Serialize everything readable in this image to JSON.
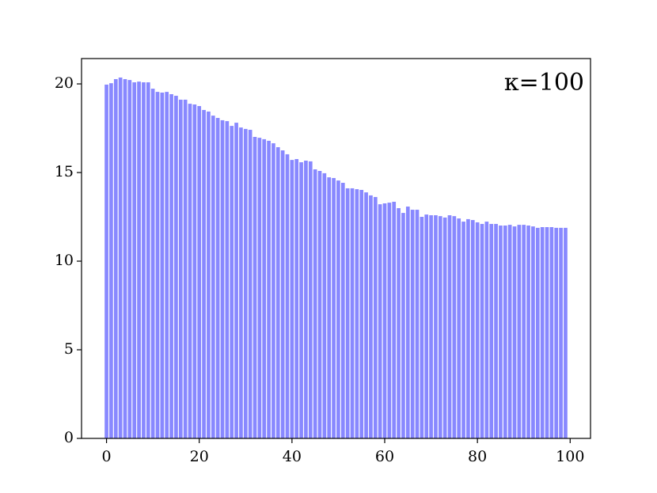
{
  "chart_data": {
    "type": "bar",
    "annotation": "κ=100",
    "x": [
      0,
      1,
      2,
      3,
      4,
      5,
      6,
      7,
      8,
      9,
      10,
      11,
      12,
      13,
      14,
      15,
      16,
      17,
      18,
      19,
      20,
      21,
      22,
      23,
      24,
      25,
      26,
      27,
      28,
      29,
      30,
      31,
      32,
      33,
      34,
      35,
      36,
      37,
      38,
      39,
      40,
      41,
      42,
      43,
      44,
      45,
      46,
      47,
      48,
      49,
      50,
      51,
      52,
      53,
      54,
      55,
      56,
      57,
      58,
      59,
      60,
      61,
      62,
      63,
      64,
      65,
      66,
      67,
      68,
      69,
      70,
      71,
      72,
      73,
      74,
      75,
      76,
      77,
      78,
      79,
      80,
      81,
      82,
      83,
      84,
      85,
      86,
      87,
      88,
      89,
      90,
      91,
      92,
      93,
      94,
      95,
      96,
      97,
      98,
      99
    ],
    "values": [
      19.96,
      20.04,
      20.27,
      20.36,
      20.27,
      20.22,
      20.09,
      20.13,
      20.09,
      20.09,
      19.73,
      19.55,
      19.51,
      19.55,
      19.42,
      19.33,
      19.11,
      19.11,
      18.88,
      18.84,
      18.75,
      18.53,
      18.44,
      18.21,
      18.08,
      17.95,
      17.9,
      17.63,
      17.81,
      17.54,
      17.46,
      17.41,
      17.01,
      16.96,
      16.88,
      16.79,
      16.65,
      16.43,
      16.25,
      16.03,
      15.71,
      15.76,
      15.58,
      15.67,
      15.63,
      15.18,
      15.09,
      14.96,
      14.73,
      14.69,
      14.55,
      14.42,
      14.11,
      14.11,
      14.06,
      14.02,
      13.88,
      13.71,
      13.62,
      13.21,
      13.26,
      13.3,
      13.35,
      12.99,
      12.72,
      13.08,
      12.9,
      12.9,
      12.5,
      12.63,
      12.59,
      12.59,
      12.54,
      12.46,
      12.59,
      12.54,
      12.41,
      12.23,
      12.37,
      12.32,
      12.19,
      12.1,
      12.23,
      12.1,
      12.1,
      12.01,
      12.01,
      12.05,
      11.96,
      12.05,
      12.05,
      12.01,
      11.96,
      11.88,
      11.92,
      11.92,
      11.92,
      11.88,
      11.88,
      11.88
    ],
    "color": "#8888ff",
    "bar_width": 0.8,
    "xlim": [
      -5.39,
      104.39
    ],
    "xticks": [
      0,
      20,
      40,
      60,
      80,
      100
    ],
    "ylim": [
      0,
      21.43
    ],
    "yticks": [
      0,
      5,
      10,
      15,
      20
    ]
  }
}
